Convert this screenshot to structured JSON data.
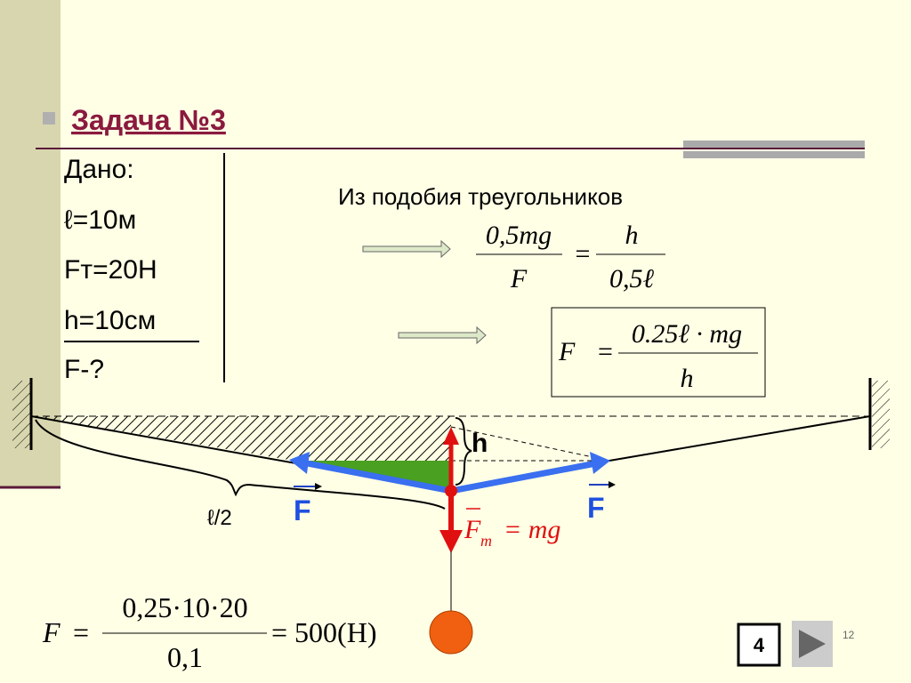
{
  "title": "Задача №3",
  "given": {
    "heading": "Дано:",
    "items": [
      "ℓ=10м",
      "Fт=20Н",
      "h=10см"
    ],
    "unknown": "F-?"
  },
  "similarity_note": "Из подобия треугольников",
  "proportion": {
    "left_num": "0,5mg",
    "left_den": "F",
    "equals": "=",
    "right_num": "h",
    "right_den": "0,5ℓ"
  },
  "result_formula": {
    "lhs": "F",
    "equals": "=",
    "num": "0.25ℓ · mg",
    "den": "h"
  },
  "diagram": {
    "h_label": "h",
    "half_length_label": "ℓ/2",
    "force_left": "F",
    "force_right": "F",
    "gravity_label": "F",
    "gravity_sub": "m",
    "gravity_rhs": "= mg"
  },
  "calculation": {
    "lhs": "F",
    "equals": "=",
    "num": "0,25·10·20",
    "den": "0,1",
    "result": "= 500(H)"
  },
  "nav": {
    "slide_button": "4",
    "page_number": "12"
  }
}
